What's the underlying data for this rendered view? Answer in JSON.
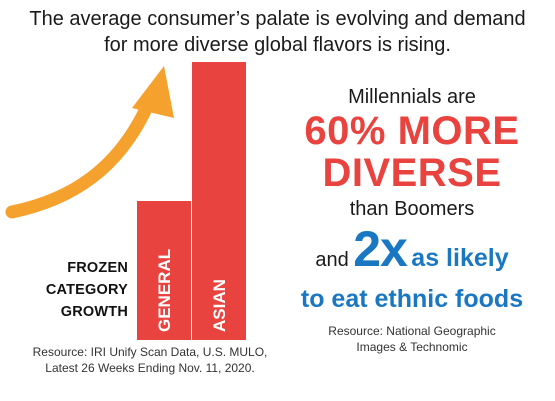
{
  "headline": {
    "line1": "The average consumer’s palate is evolving and demand",
    "line2": "for more diverse global flavors is rising."
  },
  "chart_data": {
    "type": "bar",
    "categories": [
      "GENERAL",
      "ASIAN"
    ],
    "values": [
      0.5,
      1.0
    ],
    "orientation": "vertical",
    "axes_visible": false,
    "grid": false,
    "legend": "none",
    "title": "",
    "xlabel": "",
    "ylabel": "",
    "bar_color": "#e8433f",
    "arrow_color": "#f4a22d",
    "category_label": [
      "FROZEN",
      "CATEGORY",
      "GROWTH"
    ]
  },
  "sources": {
    "left_line1": "Resource: IRI Unify Scan Data, U.S. MULO,",
    "left_line2": "Latest 26 Weeks Ending Nov. 11, 2020.",
    "right_line1": "Resource: National Geographic",
    "right_line2": "Images & Technomic"
  },
  "stats": {
    "millennials_line": "Millennials are",
    "more_line": "60% MORE",
    "diverse_line": "DIVERSE",
    "than_line": "than Boomers",
    "and_word": "and",
    "multiplier": "2x",
    "likely_text": "as likely",
    "ethnic_line": "to eat ethnic foods"
  },
  "colors": {
    "accent_red": "#e8433f",
    "accent_blue": "#1a78c2",
    "arrow_orange": "#f4a22d"
  }
}
